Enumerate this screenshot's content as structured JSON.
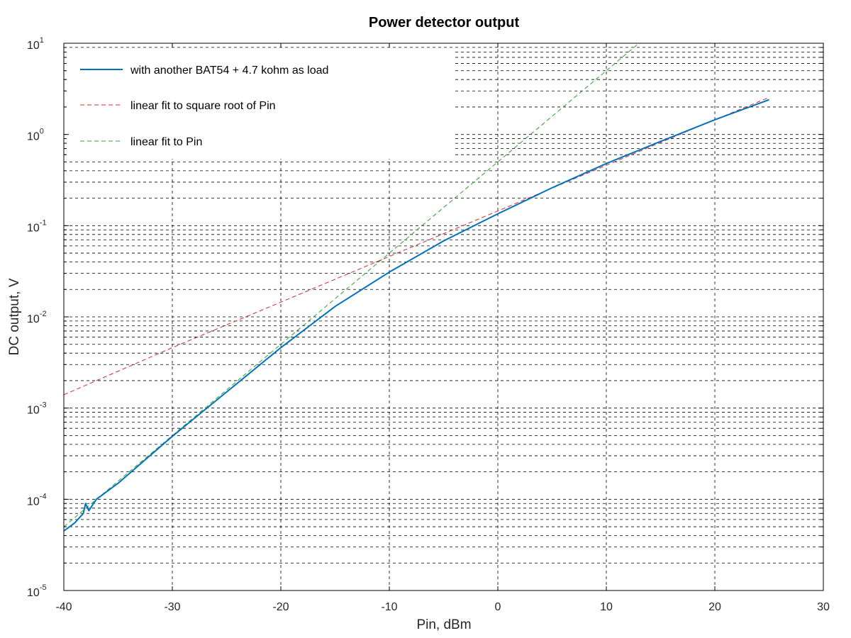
{
  "chart_data": {
    "type": "line",
    "title": "Power detector output",
    "xlabel": "Pin, dBm",
    "ylabel": "DC output, V",
    "xlim": [
      -40,
      30
    ],
    "ylim": [
      1e-05,
      10
    ],
    "yscale": "log",
    "grid": true,
    "legend_position": "top-left",
    "x_ticks": [
      -40,
      -30,
      -20,
      -10,
      0,
      10,
      20,
      30
    ],
    "y_ticks": [
      {
        "base": "10",
        "exp": "-5"
      },
      {
        "base": "10",
        "exp": "-4"
      },
      {
        "base": "10",
        "exp": "-3"
      },
      {
        "base": "10",
        "exp": "-2"
      },
      {
        "base": "10",
        "exp": "-1"
      },
      {
        "base": "10",
        "exp": "0"
      },
      {
        "base": "10",
        "exp": "1"
      }
    ],
    "series": [
      {
        "name": "with another BAT54 + 4.7 kohm as load",
        "color": "#0072bd",
        "style": "solid",
        "x": [
          -40,
          -39,
          -38.2,
          -38,
          -37.7,
          -37,
          -35,
          -30,
          -25,
          -20,
          -15,
          -10,
          -5,
          0,
          5,
          10,
          15,
          20,
          25
        ],
        "y": [
          4.5e-05,
          5.5e-05,
          7e-05,
          9e-05,
          7.5e-05,
          0.0001,
          0.00015,
          0.00049,
          0.0015,
          0.0046,
          0.013,
          0.031,
          0.068,
          0.135,
          0.26,
          0.48,
          0.84,
          1.45,
          2.4
        ]
      },
      {
        "name": "linear fit to square root of Pin",
        "color": "#d62728",
        "style": "dashed",
        "x": [
          -40,
          -30,
          -20,
          -10,
          0,
          10,
          20,
          25
        ],
        "y": [
          0.0014,
          0.0046,
          0.0145,
          0.046,
          0.145,
          0.46,
          1.45,
          2.55
        ]
      },
      {
        "name": "linear fit to Pin",
        "color": "#2ca02c",
        "style": "dashed",
        "x": [
          -40,
          -30,
          -20,
          -10,
          0,
          10,
          13
        ],
        "y": [
          5e-05,
          0.0005,
          0.005,
          0.05,
          0.5,
          5,
          10
        ]
      }
    ]
  }
}
